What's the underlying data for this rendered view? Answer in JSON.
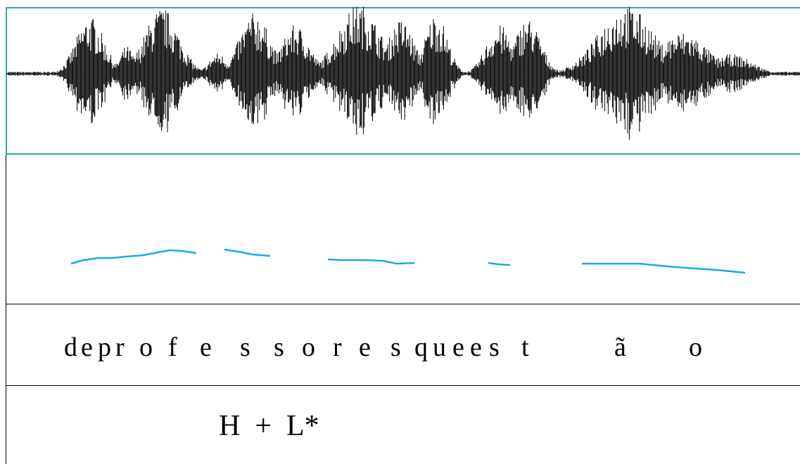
{
  "waveform": {
    "name": "speech-waveform",
    "color": "#000000",
    "frame_color": "#2aa8a8"
  },
  "pitch_track": {
    "name": "f0-contour",
    "color": "#1aa9e8"
  },
  "segmental_tier": {
    "letters": [
      "d",
      "e",
      "p",
      "r",
      "o",
      "f",
      "e",
      "s",
      "s",
      "o",
      "r",
      "e",
      "s",
      "q",
      "u",
      "e",
      "e",
      "s",
      "t",
      "ã",
      "o"
    ]
  },
  "tonal_tier": {
    "label": "H  +  L*"
  }
}
